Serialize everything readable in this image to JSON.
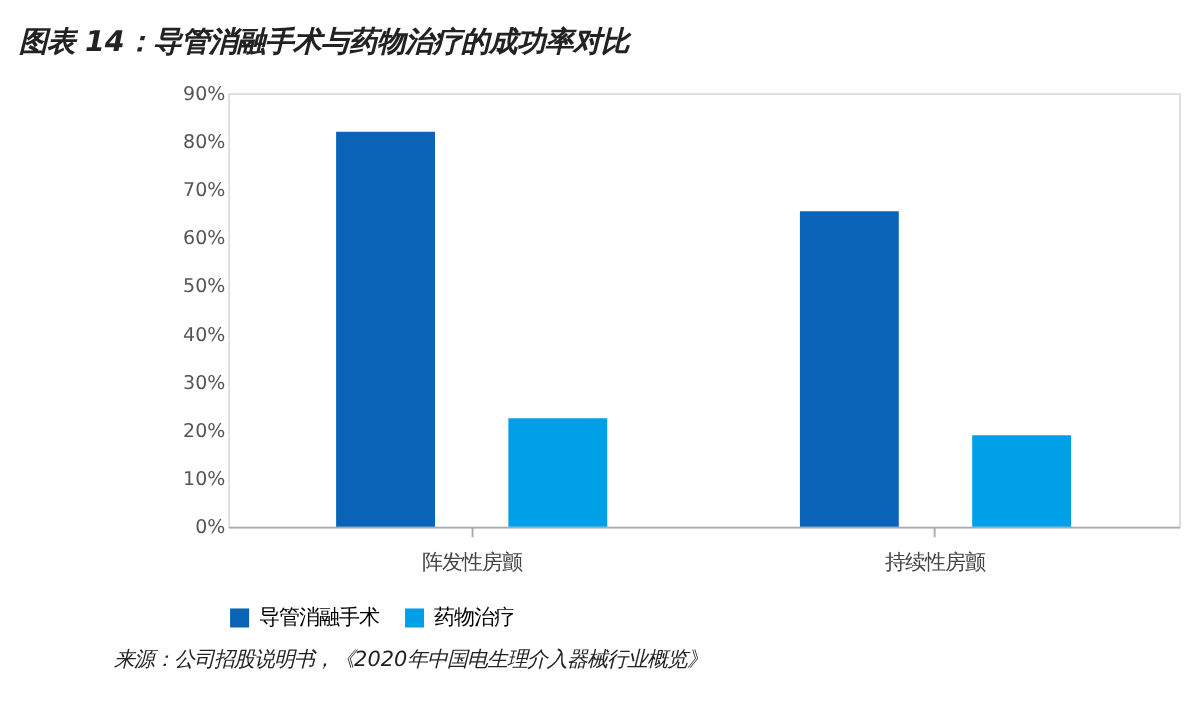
{
  "chart_data": {
    "type": "bar",
    "title": "图表 14：导管消融手术与药物治疗的成功率对比",
    "categories": [
      "阵发性房颤",
      "持续性房颤"
    ],
    "series": [
      {
        "name": "导管消融手术",
        "color": "#0b63b8",
        "values": [
          82,
          65.5
        ]
      },
      {
        "name": "药物治疗",
        "color": "#00a0e9",
        "values": [
          22.5,
          19
        ]
      }
    ],
    "ylim": [
      0,
      90
    ],
    "yticks": [
      {
        "value": 0,
        "label": "0%"
      },
      {
        "value": 10,
        "label": "10%"
      },
      {
        "value": 20,
        "label": "20%"
      },
      {
        "value": 30,
        "label": "30%"
      },
      {
        "value": 40,
        "label": "40%"
      },
      {
        "value": 50,
        "label": "50%"
      },
      {
        "value": 60,
        "label": "60%"
      },
      {
        "value": 70,
        "label": "70%"
      },
      {
        "value": 80,
        "label": "80%"
      },
      {
        "value": 90,
        "label": "90%"
      }
    ],
    "grid": false,
    "legend": "bottom",
    "annotations": [
      "来源：公司招股说明书，《2020年中国电生理介入器械行业概览》"
    ]
  }
}
